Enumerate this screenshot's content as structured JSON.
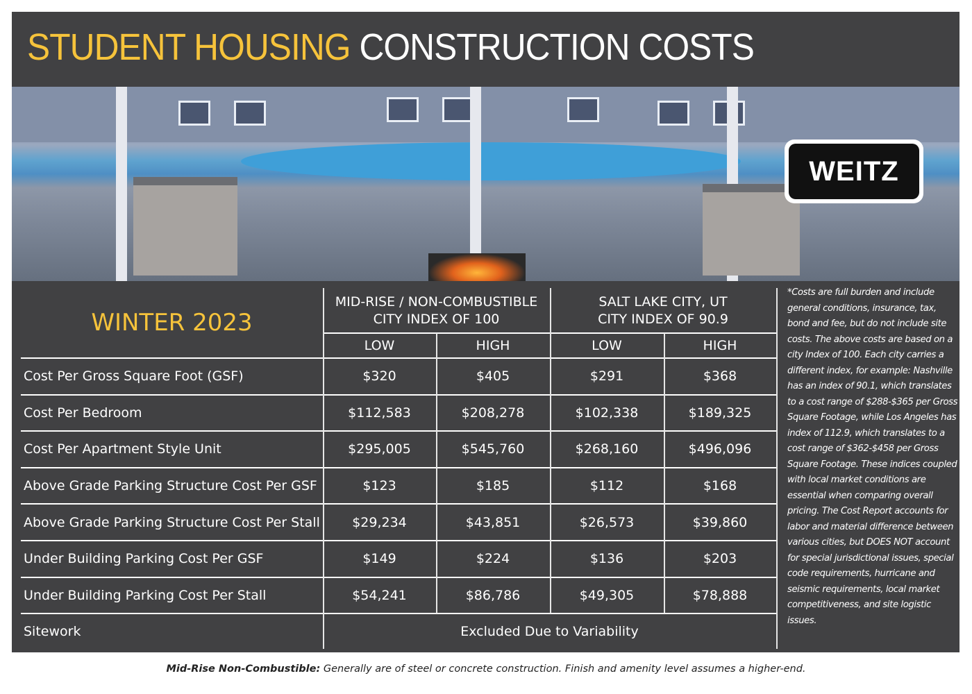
{
  "title": {
    "highlight": "STUDENT HOUSING",
    "rest": "CONSTRUCTION COSTS"
  },
  "logo": {
    "text": "WEITZ"
  },
  "colors": {
    "accent": "#f6c33b",
    "panel": "#414143"
  },
  "table": {
    "season": "WINTER 2023",
    "groups": [
      {
        "line1": "MID-RISE / NON-COMBUSTIBLE",
        "line2": "CITY INDEX OF 100"
      },
      {
        "line1": "SALT LAKE CITY, UT",
        "line2": "CITY INDEX OF 90.9"
      }
    ],
    "subheaders": [
      "LOW",
      "HIGH",
      "LOW",
      "HIGH"
    ],
    "rows": [
      {
        "label": "Cost Per Gross Square Foot (GSF)",
        "values": [
          "$320",
          "$405",
          "$291",
          "$368"
        ]
      },
      {
        "label": "Cost Per Bedroom",
        "values": [
          "$112,583",
          "$208,278",
          "$102,338",
          "$189,325"
        ]
      },
      {
        "label": "Cost Per Apartment Style Unit",
        "values": [
          "$295,005",
          "$545,760",
          "$268,160",
          "$496,096"
        ]
      },
      {
        "label": "Above Grade Parking Structure Cost Per GSF",
        "values": [
          "$123",
          "$185",
          "$112",
          "$168"
        ]
      },
      {
        "label": "Above Grade Parking Structure Cost Per Stall",
        "values": [
          "$29,234",
          "$43,851",
          "$26,573",
          "$39,860"
        ]
      },
      {
        "label": "Under Building Parking Cost Per GSF",
        "values": [
          "$149",
          "$224",
          "$136",
          "$203"
        ]
      },
      {
        "label": "Under Building Parking Cost Per Stall",
        "values": [
          "$54,241",
          "$86,786",
          "$49,305",
          "$78,888"
        ]
      }
    ],
    "sitework": {
      "label": "Sitework",
      "value": "Excluded Due to Variability"
    }
  },
  "note": "*Costs are full burden and include general conditions, insurance, tax, bond and fee, but do not include site costs. The above costs are based on a city Index of 100. Each city carries a different index, for example: Nashville has an index of 90.1, which translates to a cost range of $288-$365 per Gross Square Footage, while Los Angeles has index of 112.9, which translates to a cost range of $362-$458 per Gross Square Footage. These indices coupled with local market conditions are essential when comparing overall pricing. The Cost Report accounts for labor and material difference between various cities, but DOES NOT account for special jurisdictional issues, special code requirements, hurricane and seismic requirements, local market competitiveness, and site logistic issues.",
  "footer": {
    "term": "Mid-Rise Non-Combustible:",
    "text": " Generally are of steel or concrete construction. Finish and amenity level assumes a higher-end."
  }
}
